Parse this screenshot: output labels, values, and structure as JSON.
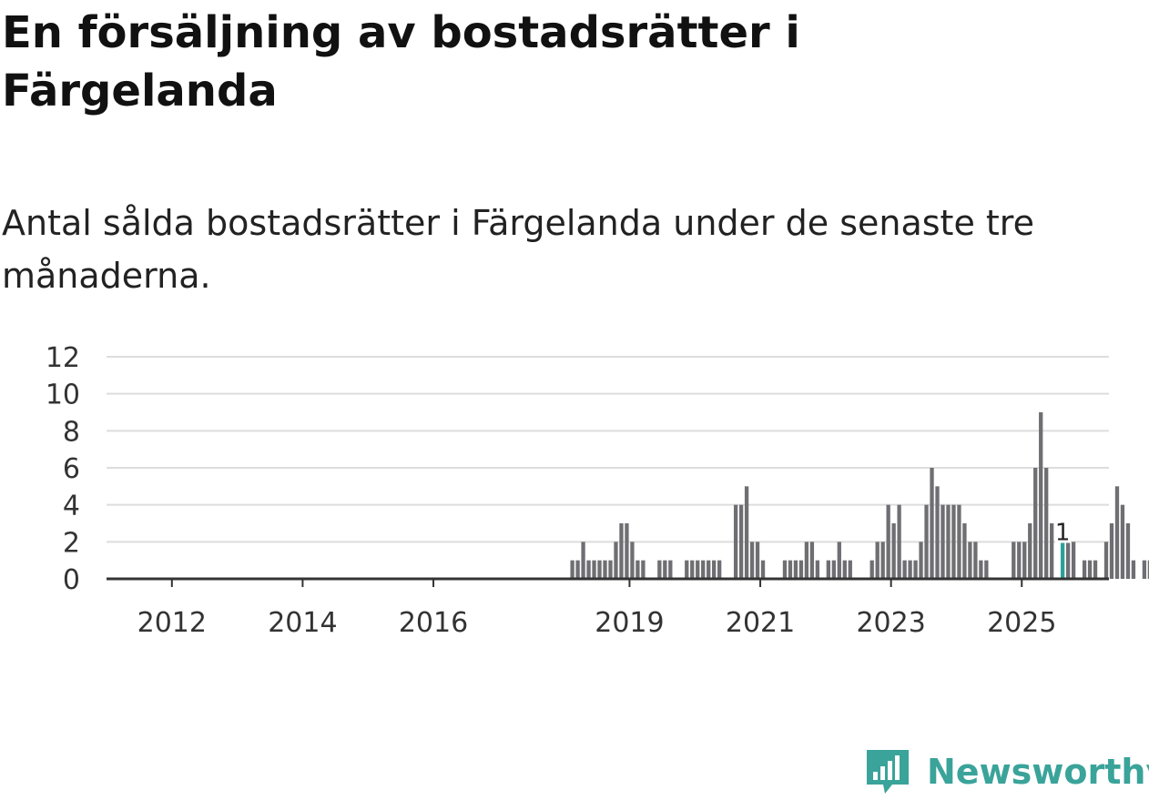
{
  "title": "En försäljning av bostadsrätter i Färgelanda",
  "subtitle": "Antal sålda bostadsrätter i Färgelanda under de senaste tre månaderna.",
  "brand": {
    "name": "Newsworthy",
    "icon": "newsworthy-logo-icon",
    "color": "#3aa39a"
  },
  "colors": {
    "bar": "#6f6e73",
    "highlight": "#2aa198",
    "grid": "#dddddd",
    "axis": "#333333"
  },
  "chart_data": {
    "type": "bar",
    "title": "",
    "xlabel": "",
    "ylabel": "",
    "ylim": [
      0,
      12
    ],
    "yticks": [
      0,
      2,
      4,
      6,
      8,
      10,
      12
    ],
    "x_start": "2011-01",
    "xlim_months": [
      0,
      184
    ],
    "xticks": [
      {
        "label": "2012",
        "month_index": 12
      },
      {
        "label": "2014",
        "month_index": 36
      },
      {
        "label": "2016",
        "month_index": 60
      },
      {
        "label": "2019",
        "month_index": 96
      },
      {
        "label": "2021",
        "month_index": 120
      },
      {
        "label": "2023",
        "month_index": 144
      },
      {
        "label": "2025",
        "month_index": 168
      }
    ],
    "grid": true,
    "highlight": {
      "month_index": 175,
      "value": 1,
      "label": "1"
    },
    "values": [
      0,
      0,
      0,
      0,
      0,
      0,
      0,
      0,
      0,
      0,
      0,
      0,
      0,
      0,
      0,
      0,
      0,
      0,
      0,
      0,
      0,
      0,
      0,
      0,
      0,
      0,
      0,
      0,
      0,
      0,
      0,
      0,
      0,
      0,
      0,
      0,
      0,
      0,
      0,
      0,
      0,
      0,
      0,
      0,
      0,
      0,
      0,
      0,
      0,
      0,
      0,
      0,
      0,
      0,
      0,
      0,
      0,
      0,
      0,
      0,
      0,
      0,
      0,
      0,
      0,
      0,
      0,
      0,
      0,
      0,
      0,
      0,
      0,
      0,
      0,
      0,
      0,
      0,
      0,
      0,
      0,
      0,
      0,
      0,
      0,
      1,
      1,
      2,
      1,
      1,
      1,
      1,
      1,
      2,
      3,
      3,
      2,
      1,
      1,
      0,
      0,
      1,
      1,
      1,
      0,
      0,
      1,
      1,
      1,
      1,
      1,
      1,
      1,
      0,
      0,
      4,
      4,
      5,
      2,
      2,
      1,
      0,
      0,
      0,
      1,
      1,
      1,
      1,
      2,
      2,
      1,
      0,
      1,
      1,
      2,
      1,
      1,
      0,
      0,
      0,
      1,
      2,
      2,
      4,
      3,
      4,
      1,
      1,
      1,
      2,
      4,
      6,
      5,
      4,
      4,
      4,
      4,
      3,
      2,
      2,
      1,
      1,
      0,
      0,
      0,
      0,
      2,
      2,
      2,
      3,
      6,
      9,
      6,
      3,
      0,
      2,
      2,
      2,
      0,
      1,
      1,
      1,
      0,
      2,
      3,
      5,
      4,
      3,
      1,
      0,
      1,
      1
    ]
  }
}
